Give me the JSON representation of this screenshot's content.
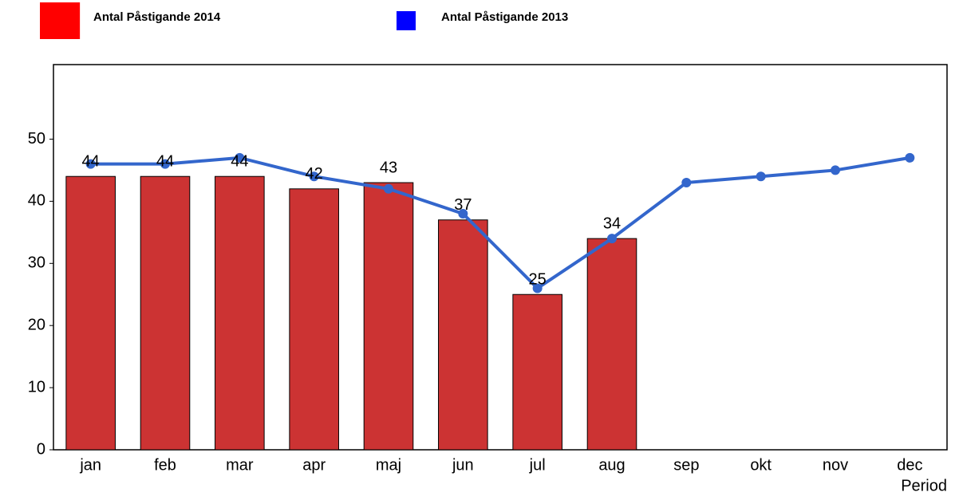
{
  "chart_data": {
    "type": "bar",
    "x_label": "Period",
    "categories": [
      "jan",
      "feb",
      "mar",
      "apr",
      "maj",
      "jun",
      "jul",
      "aug",
      "sep",
      "okt",
      "nov",
      "dec"
    ],
    "series": [
      {
        "name": "Antal Påstigande 2014",
        "type": "bar",
        "color": "#cc3333",
        "legend_color": "#ff0000",
        "values": [
          44,
          44,
          44,
          42,
          43,
          37,
          25,
          34,
          null,
          null,
          null,
          null
        ]
      },
      {
        "name": "Antal Påstigande 2013",
        "type": "line",
        "color": "#3366cc",
        "legend_color": "#0000ff",
        "values": [
          46,
          46,
          47,
          44,
          42,
          38,
          26,
          34,
          43,
          44,
          45,
          47
        ]
      }
    ],
    "ylim": [
      0,
      62
    ],
    "yticks": [
      0,
      10,
      20,
      30,
      40,
      50
    ],
    "grid": false,
    "legend": "top"
  }
}
